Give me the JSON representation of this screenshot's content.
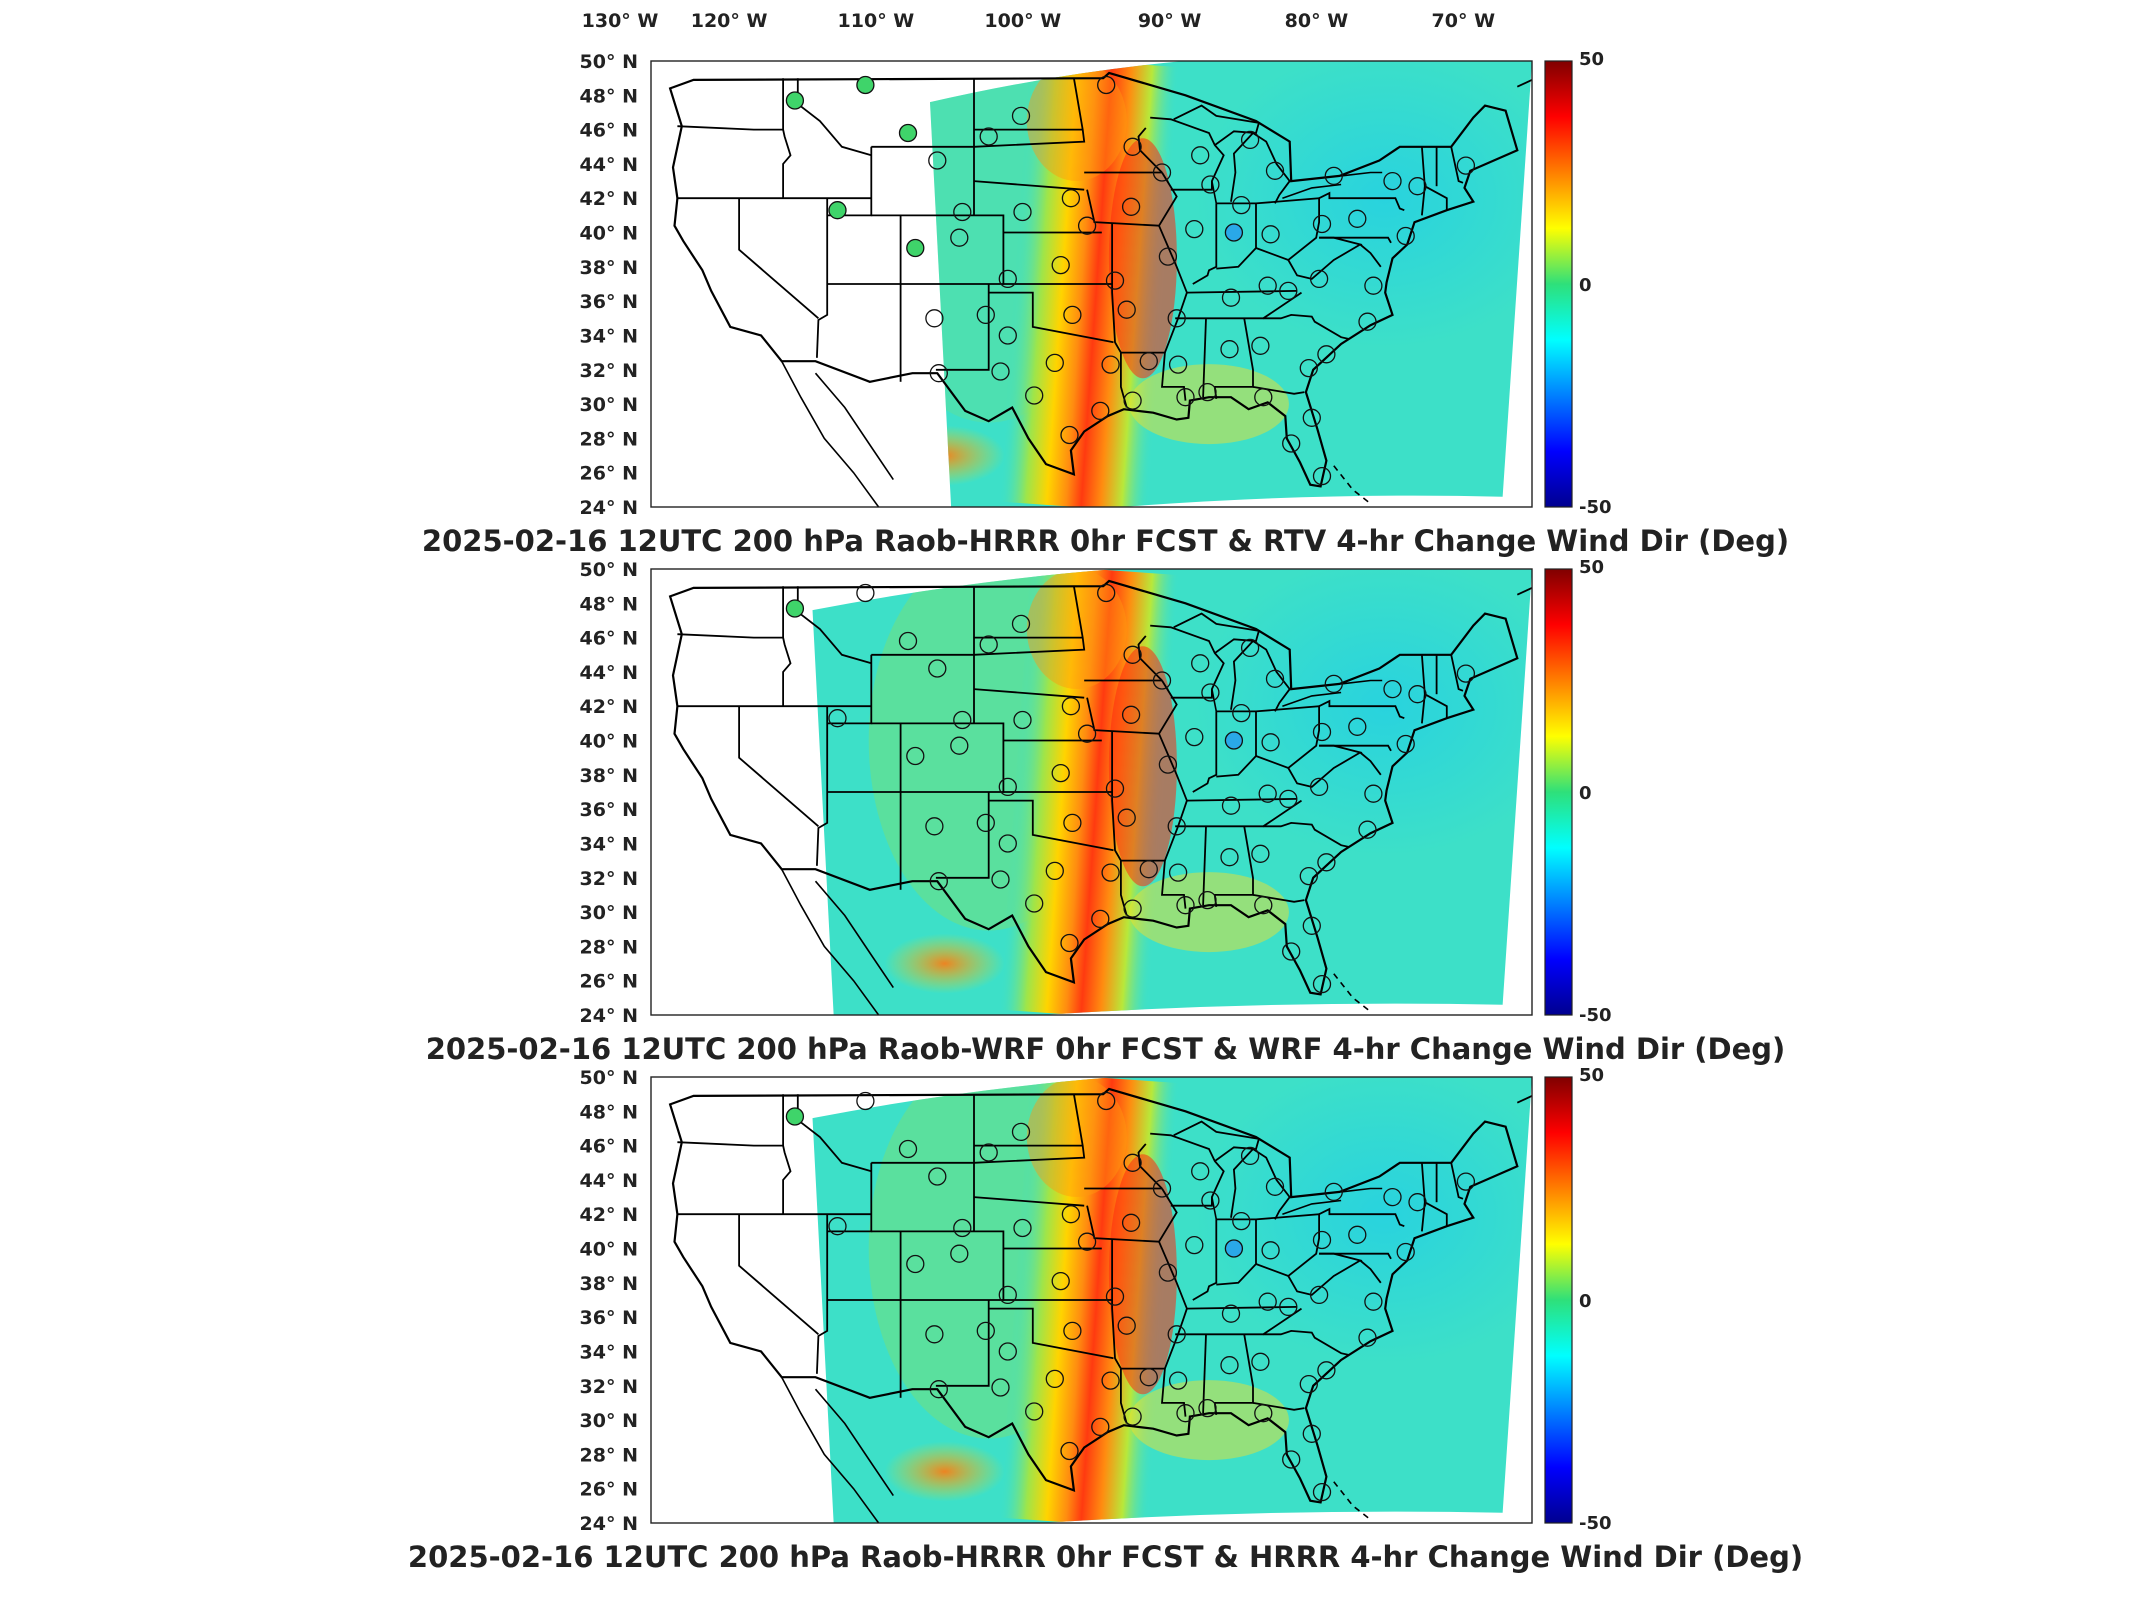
{
  "top_lon_ticks": [
    "130° W",
    "120° W",
    "110° W",
    "100° W",
    "90° W",
    "80° W",
    "70° W"
  ],
  "lat_ticks": [
    "50° N",
    "48° N",
    "46° N",
    "44° N",
    "42° N",
    "40° N",
    "38° N",
    "36° N",
    "34° N",
    "32° N",
    "30° N",
    "28° N",
    "26° N",
    "24° N"
  ],
  "colorbar": {
    "max_label": "50",
    "mid_label": "0",
    "min_label": "-50",
    "colors": [
      "#00008f",
      "#0000ff",
      "#00ffff",
      "#2ee07a",
      "#ffff00",
      "#ff7f00",
      "#ff0000",
      "#800000"
    ]
  },
  "panels": [
    {
      "title": "2025-02-16 12UTC 200 hPa Raob-HRRR 0hr FCST & RTV 4-hr Change Wind Dir (Deg)",
      "field_west_edge_lon": "-107"
    },
    {
      "title": "2025-02-16 12UTC 200 hPa Raob-WRF 0hr FCST & WRF 4-hr Change Wind Dir (Deg)",
      "field_west_edge_lon": "-115"
    },
    {
      "title": "2025-02-16 12UTC 200 hPa Raob-HRRR 0hr FCST & HRRR 4-hr Change Wind Dir (Deg)",
      "field_west_edge_lon": "-115"
    }
  ],
  "map_colors": {
    "background_field": "#3de0c8",
    "band_core": "#ff3a10",
    "band_edge": "#ffd400",
    "border": "#000000"
  }
}
